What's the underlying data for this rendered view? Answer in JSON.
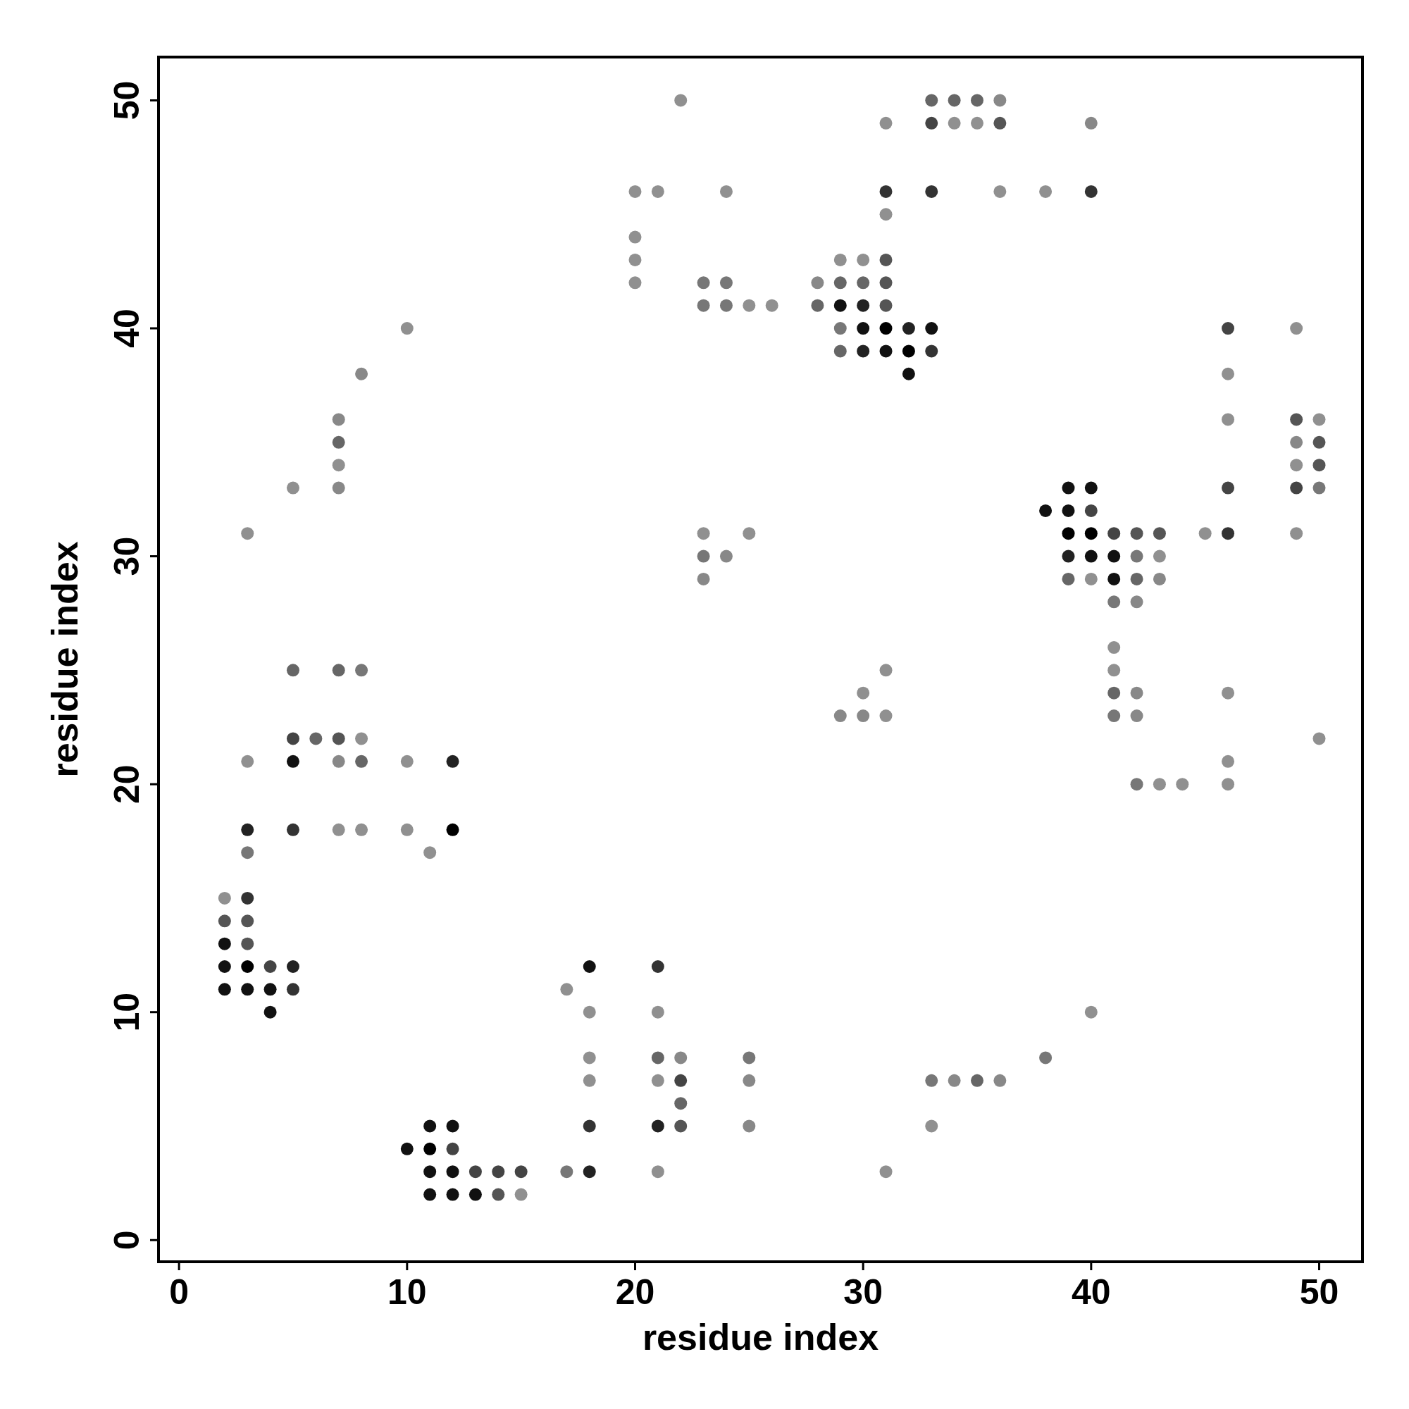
{
  "chart_data": {
    "type": "scatter",
    "xlabel": "residue index",
    "ylabel": "residue index",
    "xlim": [
      -0.9,
      51.9
    ],
    "ylim": [
      -0.95,
      51.9
    ],
    "xticks": [
      0,
      10,
      20,
      30,
      40,
      50
    ],
    "yticks": [
      0,
      10,
      20,
      30,
      40,
      50
    ],
    "marker": "circle",
    "grid": false,
    "x": [
      22,
      33,
      34,
      35,
      36,
      31,
      33,
      34,
      35,
      36,
      40,
      20,
      21,
      24,
      31,
      33,
      36,
      38,
      40,
      31,
      20,
      20,
      29,
      30,
      31,
      20,
      23,
      24,
      28,
      29,
      30,
      31,
      23,
      24,
      25,
      26,
      28,
      29,
      30,
      31,
      10,
      29,
      30,
      31,
      32,
      33,
      46,
      49,
      29,
      30,
      31,
      32,
      33,
      8,
      32,
      46,
      7,
      46,
      49,
      50,
      7,
      49,
      50,
      7,
      49,
      50,
      5,
      7,
      39,
      40,
      46,
      49,
      50,
      38,
      39,
      40,
      3,
      23,
      25,
      39,
      40,
      41,
      42,
      43,
      45,
      46,
      49,
      23,
      24,
      39,
      40,
      41,
      42,
      43,
      23,
      39,
      40,
      41,
      42,
      43,
      41,
      42,
      41,
      5,
      7,
      8,
      31,
      41,
      30,
      41,
      42,
      46,
      29,
      30,
      31,
      41,
      42,
      5,
      6,
      7,
      8,
      50,
      3,
      5,
      7,
      8,
      10,
      12,
      46,
      42,
      43,
      44,
      46,
      3,
      5,
      7,
      8,
      10,
      12,
      3,
      11,
      2,
      3,
      2,
      3,
      2,
      3,
      2,
      3,
      4,
      5,
      18,
      21,
      2,
      3,
      4,
      5,
      17,
      4,
      18,
      21,
      40,
      18,
      21,
      22,
      25,
      38,
      18,
      21,
      22,
      25,
      33,
      34,
      35,
      36,
      22,
      11,
      12,
      18,
      21,
      22,
      25,
      33,
      10,
      11,
      12,
      11,
      12,
      13,
      14,
      15,
      17,
      18,
      21,
      31,
      11,
      12,
      13,
      14,
      15
    ],
    "values": [
      50,
      50,
      50,
      50,
      50,
      49,
      49,
      49,
      49,
      49,
      49,
      46,
      46,
      46,
      46,
      46,
      46,
      46,
      46,
      45,
      44,
      43,
      43,
      43,
      43,
      42,
      42,
      42,
      42,
      42,
      42,
      42,
      41,
      41,
      41,
      41,
      41,
      41,
      41,
      41,
      40,
      40,
      40,
      40,
      40,
      40,
      40,
      40,
      39,
      39,
      39,
      39,
      39,
      38,
      38,
      38,
      36,
      36,
      36,
      36,
      35,
      35,
      35,
      34,
      34,
      34,
      33,
      33,
      33,
      33,
      33,
      33,
      33,
      32,
      32,
      32,
      31,
      31,
      31,
      31,
      31,
      31,
      31,
      31,
      31,
      31,
      31,
      30,
      30,
      30,
      30,
      30,
      30,
      30,
      29,
      29,
      29,
      29,
      29,
      29,
      28,
      28,
      26,
      25,
      25,
      25,
      25,
      25,
      24,
      24,
      24,
      24,
      23,
      23,
      23,
      23,
      23,
      22,
      22,
      22,
      22,
      22,
      21,
      21,
      21,
      21,
      21,
      21,
      21,
      20,
      20,
      20,
      20,
      18,
      18,
      18,
      18,
      18,
      18,
      17,
      17,
      15,
      15,
      14,
      14,
      13,
      13,
      12,
      12,
      12,
      12,
      12,
      12,
      11,
      11,
      11,
      11,
      11,
      10,
      10,
      10,
      10,
      8,
      8,
      8,
      8,
      8,
      7,
      7,
      7,
      7,
      7,
      7,
      7,
      7,
      6,
      5,
      5,
      5,
      5,
      5,
      5,
      5,
      4,
      4,
      4,
      3,
      3,
      3,
      3,
      3,
      3,
      3,
      3,
      3,
      2,
      2,
      2,
      2,
      2
    ],
    "colors": [
      "#909090",
      "#666666",
      "#666666",
      "#666666",
      "#888888",
      "#909090",
      "#444444",
      "#909090",
      "#909090",
      "#555555",
      "#888888",
      "#909090",
      "#909090",
      "#909090",
      "#333333",
      "#333333",
      "#909090",
      "#909090",
      "#333333",
      "#909090",
      "#909090",
      "#909090",
      "#909090",
      "#909090",
      "#555555",
      "#909090",
      "#777777",
      "#777777",
      "#888888",
      "#666666",
      "#666666",
      "#555555",
      "#777777",
      "#777777",
      "#909090",
      "#909090",
      "#666666",
      "#111111",
      "#222222",
      "#555555",
      "#909090",
      "#777777",
      "#111111",
      "#000000",
      "#222222",
      "#111111",
      "#444444",
      "#909090",
      "#666666",
      "#222222",
      "#111111",
      "#000000",
      "#333333",
      "#888888",
      "#111111",
      "#909090",
      "#888888",
      "#909090",
      "#555555",
      "#909090",
      "#666666",
      "#888888",
      "#555555",
      "#909090",
      "#909090",
      "#555555",
      "#909090",
      "#888888",
      "#111111",
      "#111111",
      "#444444",
      "#444444",
      "#777777",
      "#111111",
      "#111111",
      "#444444",
      "#909090",
      "#909090",
      "#909090",
      "#000000",
      "#000000",
      "#444444",
      "#555555",
      "#555555",
      "#909090",
      "#333333",
      "#909090",
      "#777777",
      "#888888",
      "#222222",
      "#111111",
      "#111111",
      "#777777",
      "#909090",
      "#888888",
      "#666666",
      "#909090",
      "#111111",
      "#666666",
      "#888888",
      "#777777",
      "#888888",
      "#909090",
      "#666666",
      "#666666",
      "#777777",
      "#909090",
      "#909090",
      "#909090",
      "#666666",
      "#888888",
      "#909090",
      "#888888",
      "#888888",
      "#909090",
      "#777777",
      "#888888",
      "#444444",
      "#666666",
      "#555555",
      "#909090",
      "#909090",
      "#909090",
      "#111111",
      "#888888",
      "#666666",
      "#909090",
      "#222222",
      "#909090",
      "#777777",
      "#909090",
      "#909090",
      "#909090",
      "#222222",
      "#333333",
      "#909090",
      "#909090",
      "#909090",
      "#000000",
      "#777777",
      "#909090",
      "#909090",
      "#333333",
      "#555555",
      "#555555",
      "#111111",
      "#555555",
      "#111111",
      "#000000",
      "#444444",
      "#222222",
      "#111111",
      "#333333",
      "#111111",
      "#111111",
      "#111111",
      "#333333",
      "#909090",
      "#111111",
      "#909090",
      "#909090",
      "#909090",
      "#909090",
      "#666666",
      "#888888",
      "#777777",
      "#777777",
      "#909090",
      "#909090",
      "#444444",
      "#888888",
      "#777777",
      "#888888",
      "#666666",
      "#888888",
      "#666666",
      "#111111",
      "#111111",
      "#333333",
      "#222222",
      "#555555",
      "#888888",
      "#909090",
      "#111111",
      "#000000",
      "#444444",
      "#111111",
      "#111111",
      "#444444",
      "#444444",
      "#444444",
      "#777777",
      "#222222",
      "#909090",
      "#909090",
      "#111111",
      "#111111",
      "#111111",
      "#555555",
      "#909090"
    ]
  }
}
